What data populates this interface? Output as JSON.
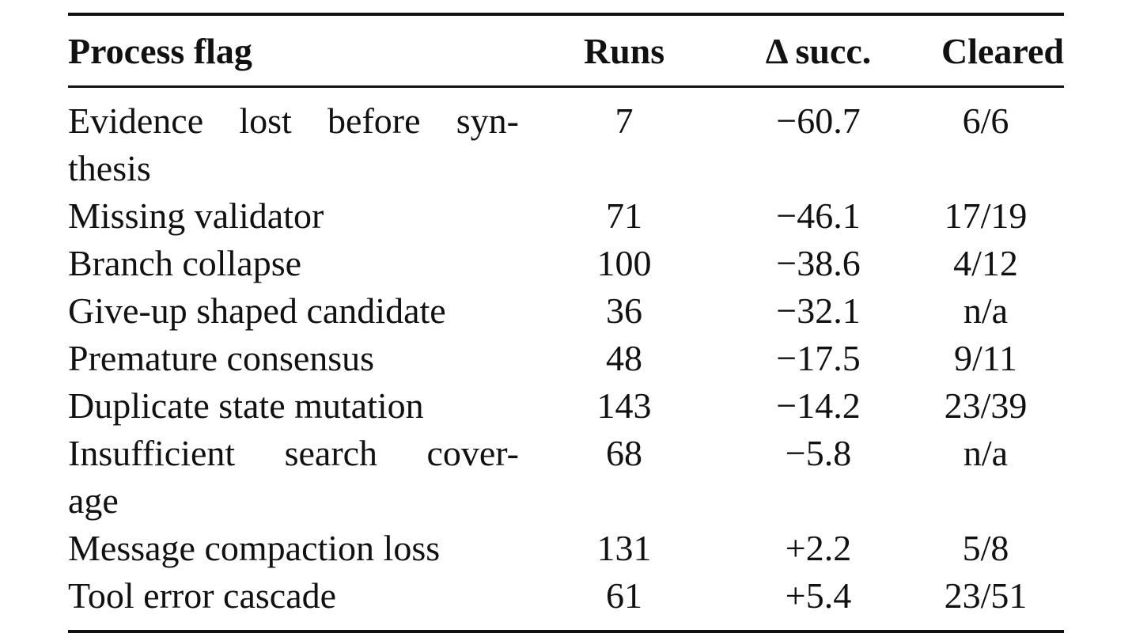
{
  "table": {
    "headers": {
      "flag": "Process flag",
      "runs": "Runs",
      "delta": "Δ succ.",
      "cleared": "Cleared"
    },
    "rows": [
      {
        "flag_lines": [
          [
            "Evidence",
            "lost",
            "before",
            "syn-"
          ],
          [
            "thesis"
          ]
        ],
        "runs": "7",
        "delta": "−60.7",
        "cleared": "6/6"
      },
      {
        "flag_lines": [
          [
            "Missing validator"
          ]
        ],
        "runs": "71",
        "delta": "−46.1",
        "cleared": "17/19"
      },
      {
        "flag_lines": [
          [
            "Branch collapse"
          ]
        ],
        "runs": "100",
        "delta": "−38.6",
        "cleared": "4/12"
      },
      {
        "flag_lines": [
          [
            "Give-up shaped candidate"
          ]
        ],
        "runs": "36",
        "delta": "−32.1",
        "cleared": "n/a"
      },
      {
        "flag_lines": [
          [
            "Premature consensus"
          ]
        ],
        "runs": "48",
        "delta": "−17.5",
        "cleared": "9/11"
      },
      {
        "flag_lines": [
          [
            "Duplicate state mutation"
          ]
        ],
        "runs": "143",
        "delta": "−14.2",
        "cleared": "23/39"
      },
      {
        "flag_lines": [
          [
            "Insufficient",
            "search",
            "cover-"
          ],
          [
            "age"
          ]
        ],
        "runs": "68",
        "delta": "−5.8",
        "cleared": "n/a"
      },
      {
        "flag_lines": [
          [
            "Message compaction loss"
          ]
        ],
        "runs": "131",
        "delta": "+2.2",
        "cleared": "5/8"
      },
      {
        "flag_lines": [
          [
            "Tool error cascade"
          ]
        ],
        "runs": "61",
        "delta": "+5.4",
        "cleared": "23/51"
      }
    ]
  }
}
